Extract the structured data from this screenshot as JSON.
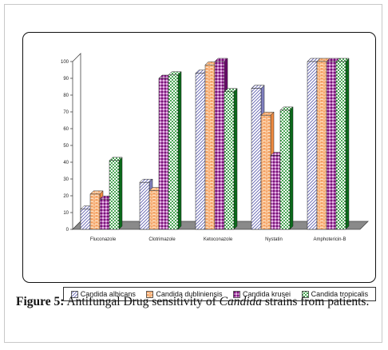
{
  "caption": {
    "label": "Figure 5:",
    "text_before": "Antifungal Drug sensitivity of",
    "text_italic": "Candida",
    "text_after": "strains from patients."
  },
  "chart_data": {
    "type": "bar",
    "title": "",
    "xlabel": "",
    "ylabel": "",
    "ylim": [
      0,
      100
    ],
    "yticks": [
      0,
      10,
      20,
      30,
      40,
      50,
      60,
      70,
      80,
      90,
      100
    ],
    "grid": false,
    "legend_position": "bottom",
    "categories": [
      "Fluconazole",
      "Clotrimazole",
      "Ketoconazole",
      "Nystatin",
      "Amphotericin-B"
    ],
    "series": [
      {
        "name": "Candida albicans",
        "color": "#9a9ac8",
        "pattern": "diagonal",
        "values": [
          12,
          28,
          93,
          84,
          100
        ]
      },
      {
        "name": "Candida dubliniensis",
        "color": "#f08a40",
        "pattern": "brick",
        "values": [
          21,
          23,
          98,
          68,
          100
        ]
      },
      {
        "name": "Candida krusei",
        "color": "#8b1a8b",
        "pattern": "diamond",
        "values": [
          18,
          90,
          100,
          44,
          100
        ]
      },
      {
        "name": "Candida tropicalis",
        "color": "#1a8a2a",
        "pattern": "dots",
        "values": [
          41,
          92,
          82,
          71,
          100
        ]
      }
    ]
  }
}
